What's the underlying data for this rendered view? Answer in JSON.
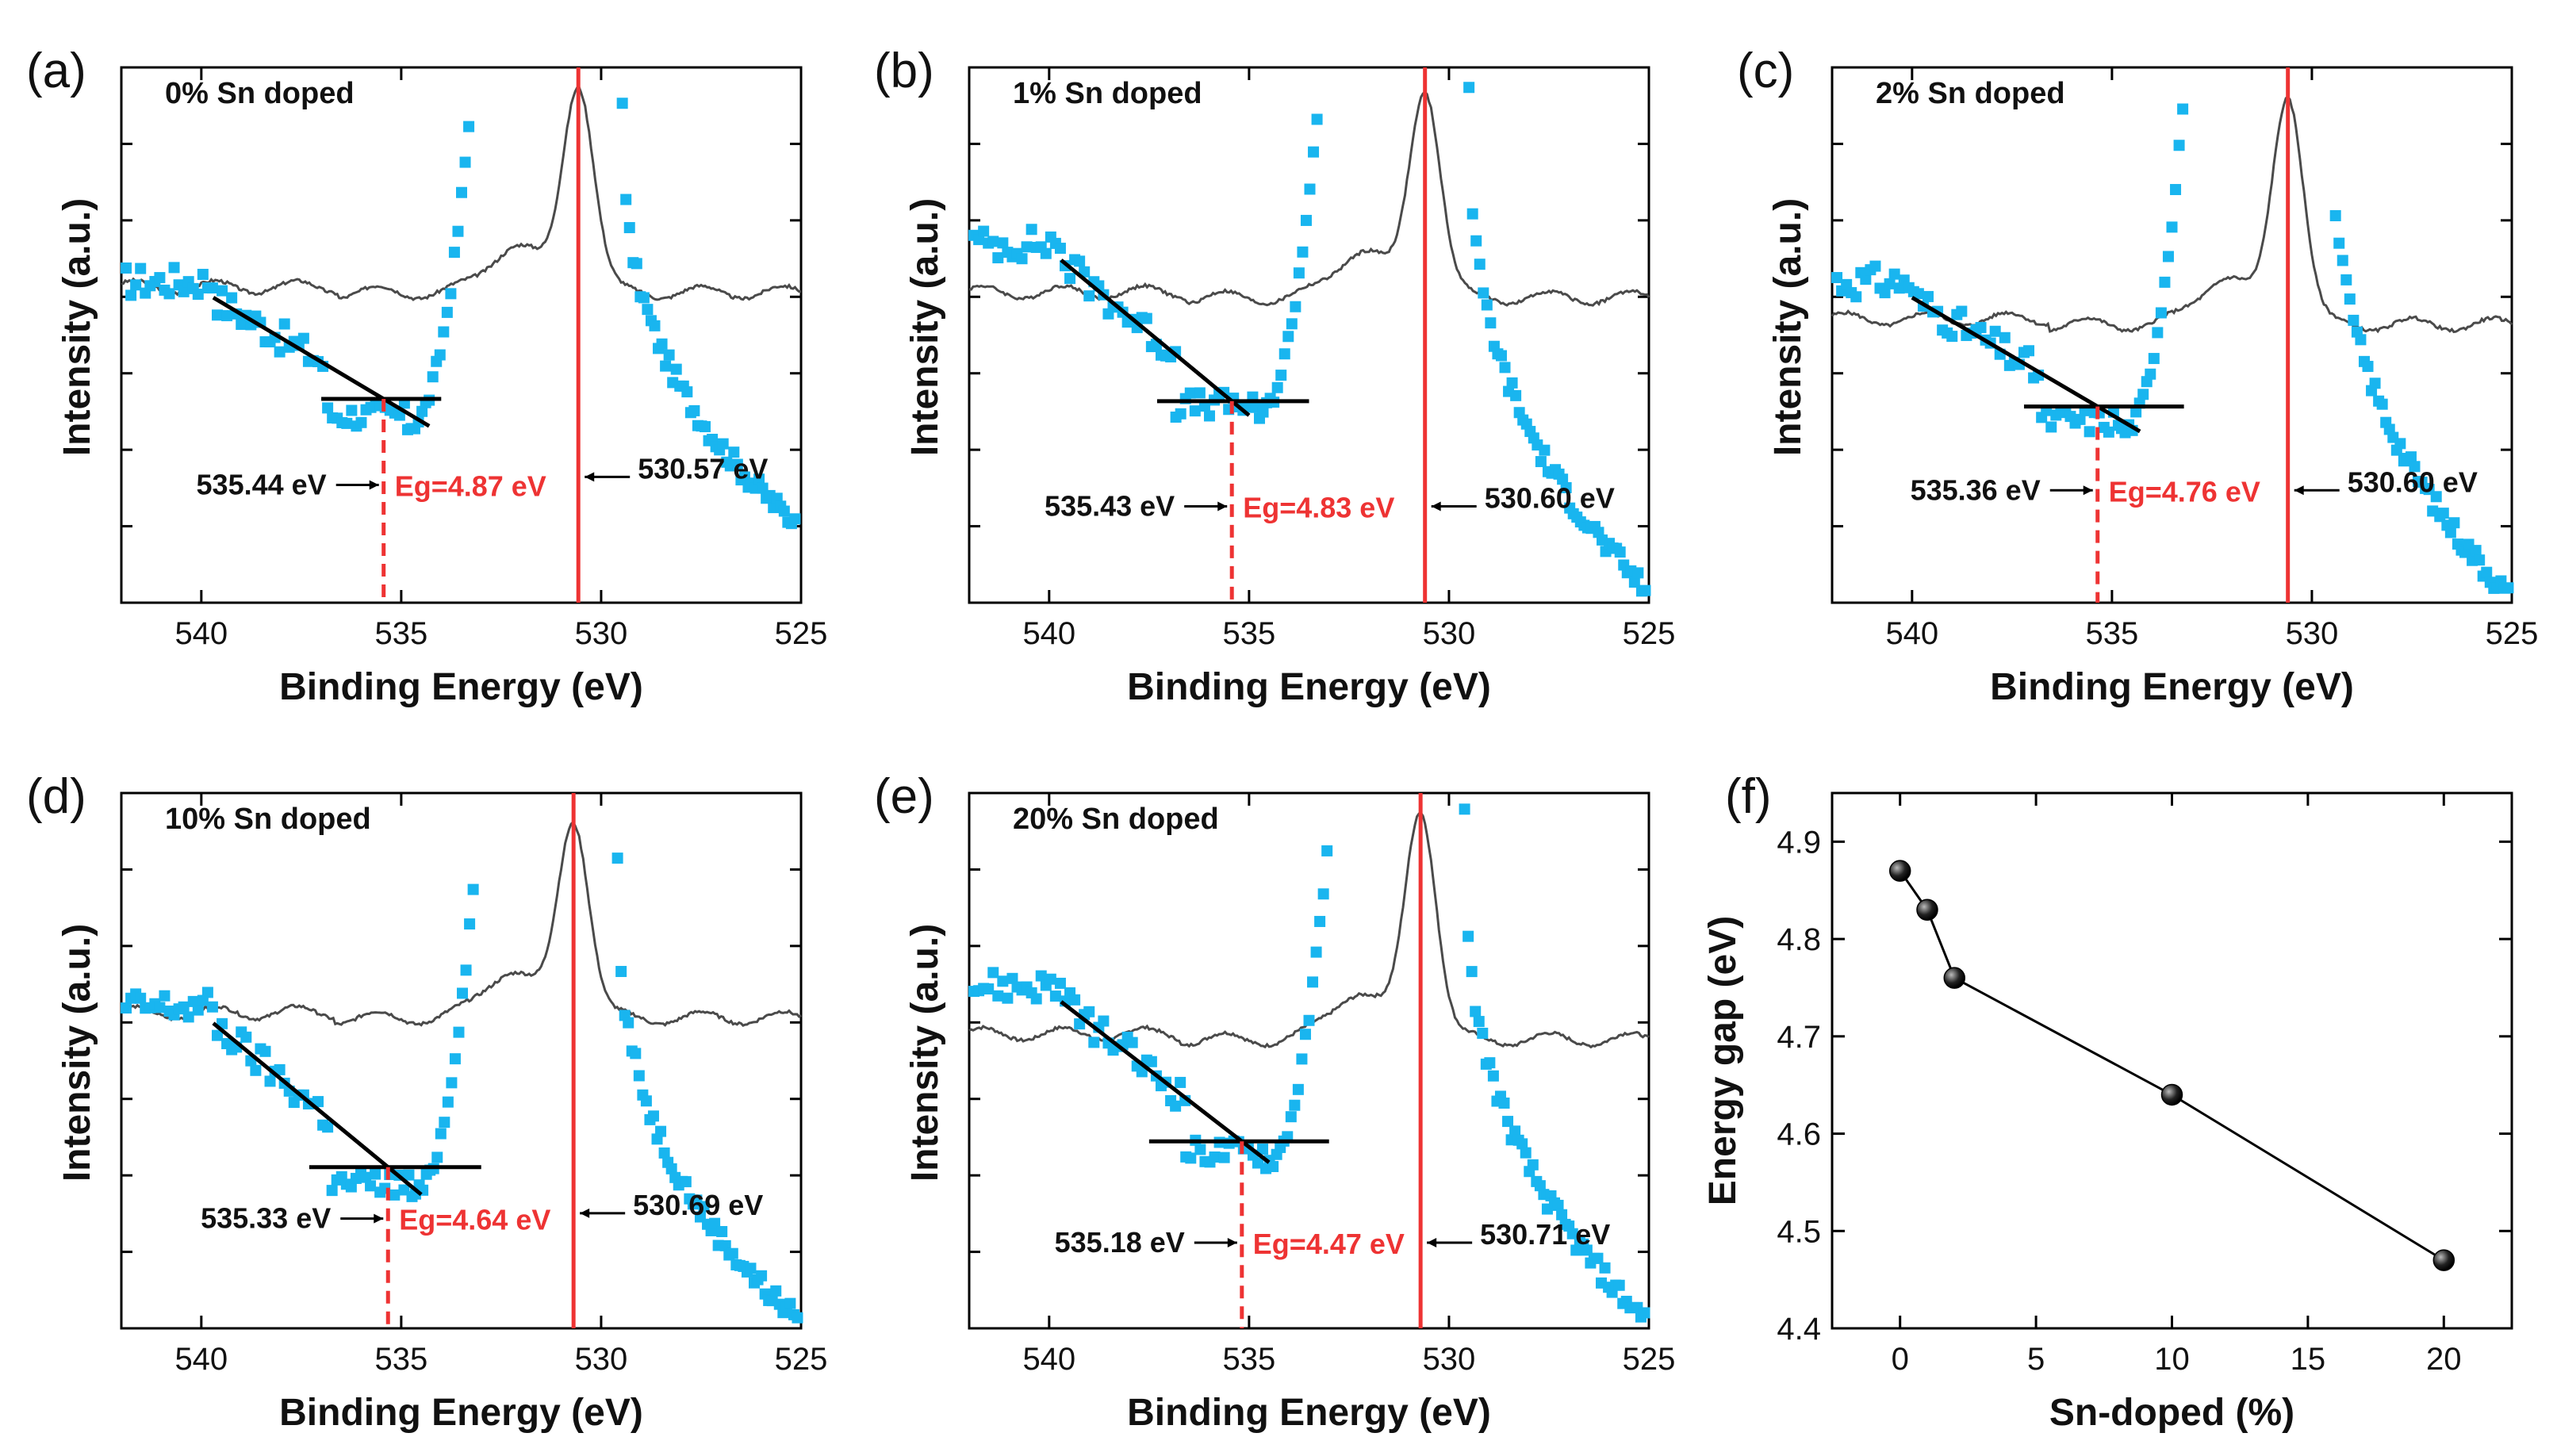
{
  "colors": {
    "points": "#19b5ef",
    "peak_line": "#ee3333",
    "spectrum": "#4a4a4a",
    "fit": "#000000",
    "annotation_red": "#ee3333"
  },
  "chart_data": [
    {
      "id": "a",
      "type": "scatter",
      "panel_label": "(a)",
      "title": "0% Sn doped",
      "xlabel": "Binding Energy (eV)",
      "ylabel": "Intensity (a.u.)",
      "xlim": [
        542,
        525
      ],
      "x_ticks": [
        540,
        535,
        530,
        525
      ],
      "onset_label": "535.44 eV",
      "eg_label": "Eg=4.87 eV",
      "peak_label": "530.57 eV",
      "onset_x": 535.44,
      "peak_x": 530.57,
      "eg_value": 4.87,
      "y_scale": {
        "level_y": 0.81,
        "points_top": 0.95,
        "points_bottom": 0.14,
        "noise": 0.03,
        "curve_top": 0.97,
        "curve_base": 0.58
      },
      "fit_start": [
        539.7,
        0.57
      ],
      "fit_end": [
        534.3,
        0.33
      ],
      "baseline_x": [
        537.0,
        534.0
      ],
      "arrow_y": 0.22,
      "peak_arrow_y": 0.235
    },
    {
      "id": "b",
      "type": "scatter",
      "panel_label": "(b)",
      "title": "1% Sn doped",
      "xlabel": "Binding Energy (eV)",
      "ylabel": "Intensity (a.u.)",
      "xlim": [
        542,
        525
      ],
      "x_ticks": [
        540,
        535,
        530,
        525
      ],
      "onset_label": "535.43 eV",
      "eg_label": "Eg=4.83 eV",
      "peak_label": "530.60 eV",
      "onset_x": 535.43,
      "peak_x": 530.6,
      "eg_value": 4.83,
      "y_scale": {
        "level_y": 0.81,
        "points_top": 0.97,
        "points_bottom": 0.02,
        "noise": 0.03,
        "curve_top": 0.96,
        "curve_base": 0.57
      },
      "fit_start": [
        539.7,
        0.64
      ],
      "fit_end": [
        535.0,
        0.35
      ],
      "baseline_x": [
        537.3,
        533.5
      ],
      "arrow_y": 0.18,
      "peak_arrow_y": 0.18
    },
    {
      "id": "c",
      "type": "scatter",
      "panel_label": "(c)",
      "title": "2% Sn doped",
      "xlabel": "Binding Energy (eV)",
      "ylabel": "Intensity (a.u.)",
      "xlim": [
        542,
        525
      ],
      "x_ticks": [
        540,
        535,
        530,
        525
      ],
      "onset_label": "535.36 eV",
      "eg_label": "Eg=4.76 eV",
      "peak_label": "530.60 eV",
      "onset_x": 535.36,
      "peak_x": 530.6,
      "eg_value": 4.76,
      "y_scale": {
        "level_y": 0.84,
        "points_top": 0.99,
        "points_bottom": 0.01,
        "noise": 0.03,
        "curve_top": 0.95,
        "curve_base": 0.52
      },
      "fit_start": [
        540.0,
        0.57
      ],
      "fit_end": [
        534.3,
        0.32
      ],
      "baseline_x": [
        537.2,
        533.2
      ],
      "arrow_y": 0.21,
      "peak_arrow_y": 0.21
    },
    {
      "id": "d",
      "type": "scatter",
      "panel_label": "(d)",
      "title": "10% Sn doped",
      "xlabel": "Binding Energy (eV)",
      "ylabel": "Intensity (a.u.)",
      "xlim": [
        542,
        525
      ],
      "x_ticks": [
        540,
        535,
        530,
        525
      ],
      "onset_label": "535.33 eV",
      "eg_label": "Eg=4.64 eV",
      "peak_label": "530.69 eV",
      "onset_x": 535.33,
      "peak_x": 530.69,
      "eg_value": 4.64,
      "y_scale": {
        "level_y": 0.81,
        "points_top": 0.88,
        "points_bottom": 0.01,
        "noise": 0.03,
        "curve_top": 0.95,
        "curve_base": 0.58
      },
      "fit_start": [
        539.7,
        0.57
      ],
      "fit_end": [
        534.5,
        0.25
      ],
      "baseline_x": [
        537.3,
        533.0
      ],
      "arrow_y": 0.205,
      "peak_arrow_y": 0.215
    },
    {
      "id": "e",
      "type": "scatter",
      "panel_label": "(e)",
      "title": "20% Sn doped",
      "xlabel": "Binding Energy (eV)",
      "ylabel": "Intensity (a.u.)",
      "xlim": [
        542,
        525
      ],
      "x_ticks": [
        540,
        535,
        530,
        525
      ],
      "onset_label": "535.18 eV",
      "eg_label": "Eg=4.47 eV",
      "peak_label": "530.71 eV",
      "onset_x": 535.18,
      "peak_x": 530.71,
      "eg_value": 4.47,
      "y_scale": {
        "level_y": 0.84,
        "points_top": 0.96,
        "points_bottom": 0.01,
        "noise": 0.03,
        "curve_top": 0.97,
        "curve_base": 0.54
      },
      "fit_start": [
        539.7,
        0.61
      ],
      "fit_end": [
        534.5,
        0.31
      ],
      "baseline_x": [
        537.5,
        533.0
      ],
      "arrow_y": 0.16,
      "peak_arrow_y": 0.16
    },
    {
      "id": "f",
      "type": "line",
      "panel_label": "(f)",
      "xlabel": "Sn-doped (%)",
      "ylabel": "Energy gap (eV)",
      "x": [
        0,
        1,
        2,
        10,
        20
      ],
      "y": [
        4.87,
        4.83,
        4.76,
        4.64,
        4.47
      ],
      "xlim": [
        -2.5,
        22.5
      ],
      "ylim": [
        4.4,
        4.95
      ],
      "x_ticks": [
        0,
        5,
        10,
        15,
        20
      ],
      "y_ticks": [
        4.4,
        4.5,
        4.6,
        4.7,
        4.8,
        4.9
      ]
    }
  ]
}
